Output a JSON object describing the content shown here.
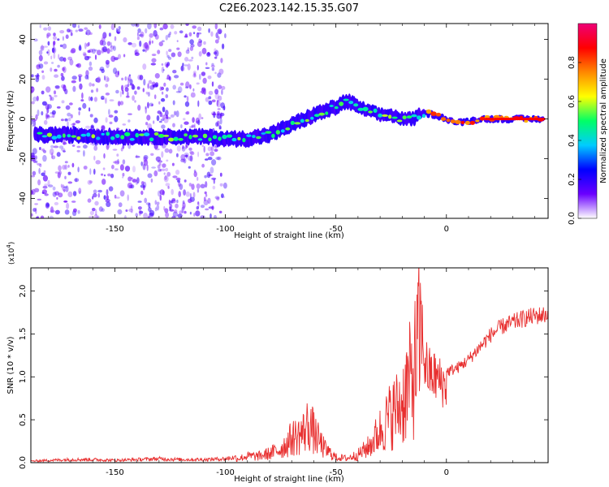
{
  "title": "C2E6.2023.142.15.35.G07",
  "chart_data": [
    {
      "type": "heatmap",
      "name": "spectrogram",
      "xlabel": "Height of straight line (km)",
      "ylabel": "Frequency (Hz)",
      "xlim": [
        -188,
        46
      ],
      "ylim": [
        -50,
        48
      ],
      "xticks": [
        -150,
        -100,
        -50,
        0
      ],
      "xticklabels": [
        "-150",
        "-100",
        "-50",
        "0"
      ],
      "yticks": [
        -40,
        -20,
        0,
        20,
        40
      ],
      "yticklabels": [
        "-40",
        "-20",
        "0",
        "20",
        "40"
      ],
      "ridge": {
        "x": [
          -188,
          -170,
          -150,
          -130,
          -110,
          -100,
          -90,
          -80,
          -70,
          -60,
          -50,
          -45,
          -40,
          -35,
          -30,
          -25,
          -20,
          -15,
          -12,
          -10,
          -5,
          0,
          5,
          10,
          15,
          20,
          30,
          46
        ],
        "y": [
          -8,
          -8,
          -9,
          -9,
          -9,
          -10,
          -10,
          -8,
          -3,
          2,
          6,
          9,
          6,
          4,
          2,
          2,
          0,
          0,
          2,
          3,
          2,
          0,
          -2,
          -1,
          0,
          0,
          0,
          0
        ]
      }
    },
    {
      "type": "colorbar",
      "name": "colorbar",
      "label": "Normalized spectral amplitude",
      "range": [
        0,
        1
      ],
      "ticks": [
        0.0,
        0.2,
        0.4,
        0.6,
        0.8
      ],
      "ticklabels": [
        "0.0",
        "0.2",
        "0.4",
        "0.6",
        "0.8"
      ],
      "colors": [
        "#ffffff",
        "#6a00ff",
        "#0000ff",
        "#00ccff",
        "#00ff66",
        "#ffff00",
        "#ff8800",
        "#ff0000",
        "#ee0077"
      ]
    },
    {
      "type": "line",
      "name": "snr",
      "xlabel": "Height of straight line (km)",
      "ylabel": "SNR (10 * v/v)",
      "yscale_label": "(x10",
      "yscale_exp": "4",
      "yscale_close": ")",
      "xlim": [
        -188,
        46
      ],
      "ylim": [
        0,
        2.27
      ],
      "xticks": [
        -150,
        -100,
        -50,
        0
      ],
      "xticklabels": [
        "-150",
        "-100",
        "-50",
        "0"
      ],
      "yticks": [
        0.0,
        0.5,
        1.0,
        1.5,
        2.0
      ],
      "yticklabels": [
        "0.0",
        "0.5",
        "1.0",
        "1.5",
        "2.0"
      ],
      "color": "#e83030",
      "series": {
        "x": [
          -188,
          -180,
          -170,
          -160,
          -150,
          -140,
          -130,
          -120,
          -110,
          -100,
          -95,
          -90,
          -85,
          -80,
          -75,
          -70,
          -65,
          -62,
          -60,
          -55,
          -50,
          -45,
          -40,
          -35,
          -30,
          -25,
          -20,
          -18,
          -15,
          -13,
          -12,
          -10,
          -8,
          -5,
          0,
          5,
          10,
          15,
          20,
          25,
          30,
          35,
          40,
          46
        ],
        "y": [
          0.02,
          0.03,
          0.04,
          0.04,
          0.03,
          0.04,
          0.05,
          0.04,
          0.04,
          0.05,
          0.07,
          0.12,
          0.12,
          0.17,
          0.25,
          0.45,
          0.55,
          0.75,
          0.55,
          0.25,
          0.1,
          0.08,
          0.15,
          0.3,
          0.6,
          0.9,
          1.1,
          1.4,
          1.6,
          2.1,
          2.27,
          1.5,
          1.3,
          1.25,
          1.1,
          1.15,
          1.25,
          1.4,
          1.55,
          1.65,
          1.7,
          1.75,
          1.78,
          1.8
        ]
      }
    }
  ]
}
